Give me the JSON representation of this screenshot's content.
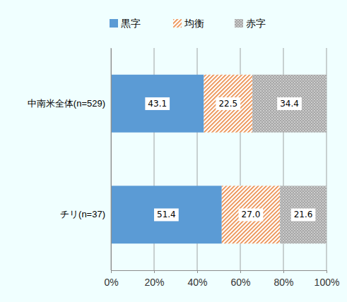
{
  "chart_data": {
    "type": "bar",
    "orientation": "horizontal",
    "stacked": true,
    "data_labels": true,
    "grid": true,
    "legend": "top",
    "categories": [
      "中南米全体(n=529)",
      "チリ(n=37)"
    ],
    "series": [
      {
        "name": "黒字",
        "color": "#5b9bd5",
        "values": [
          43.1,
          51.4
        ]
      },
      {
        "name": "均衡",
        "color": "#e8843f",
        "values": [
          22.5,
          27.0
        ],
        "value_labels": [
          "22.5",
          "27.0"
        ]
      },
      {
        "name": "赤字",
        "color": "#a6a6a6",
        "values": [
          34.4,
          21.6
        ]
      }
    ],
    "xlim": [
      0,
      100
    ],
    "xticks": [
      {
        "value": 0,
        "label": "0%"
      },
      {
        "value": 20,
        "label": "20%"
      },
      {
        "value": 40,
        "label": "40%"
      },
      {
        "value": 60,
        "label": "60%"
      },
      {
        "value": 80,
        "label": "80%"
      },
      {
        "value": 100,
        "label": "100%"
      }
    ]
  }
}
